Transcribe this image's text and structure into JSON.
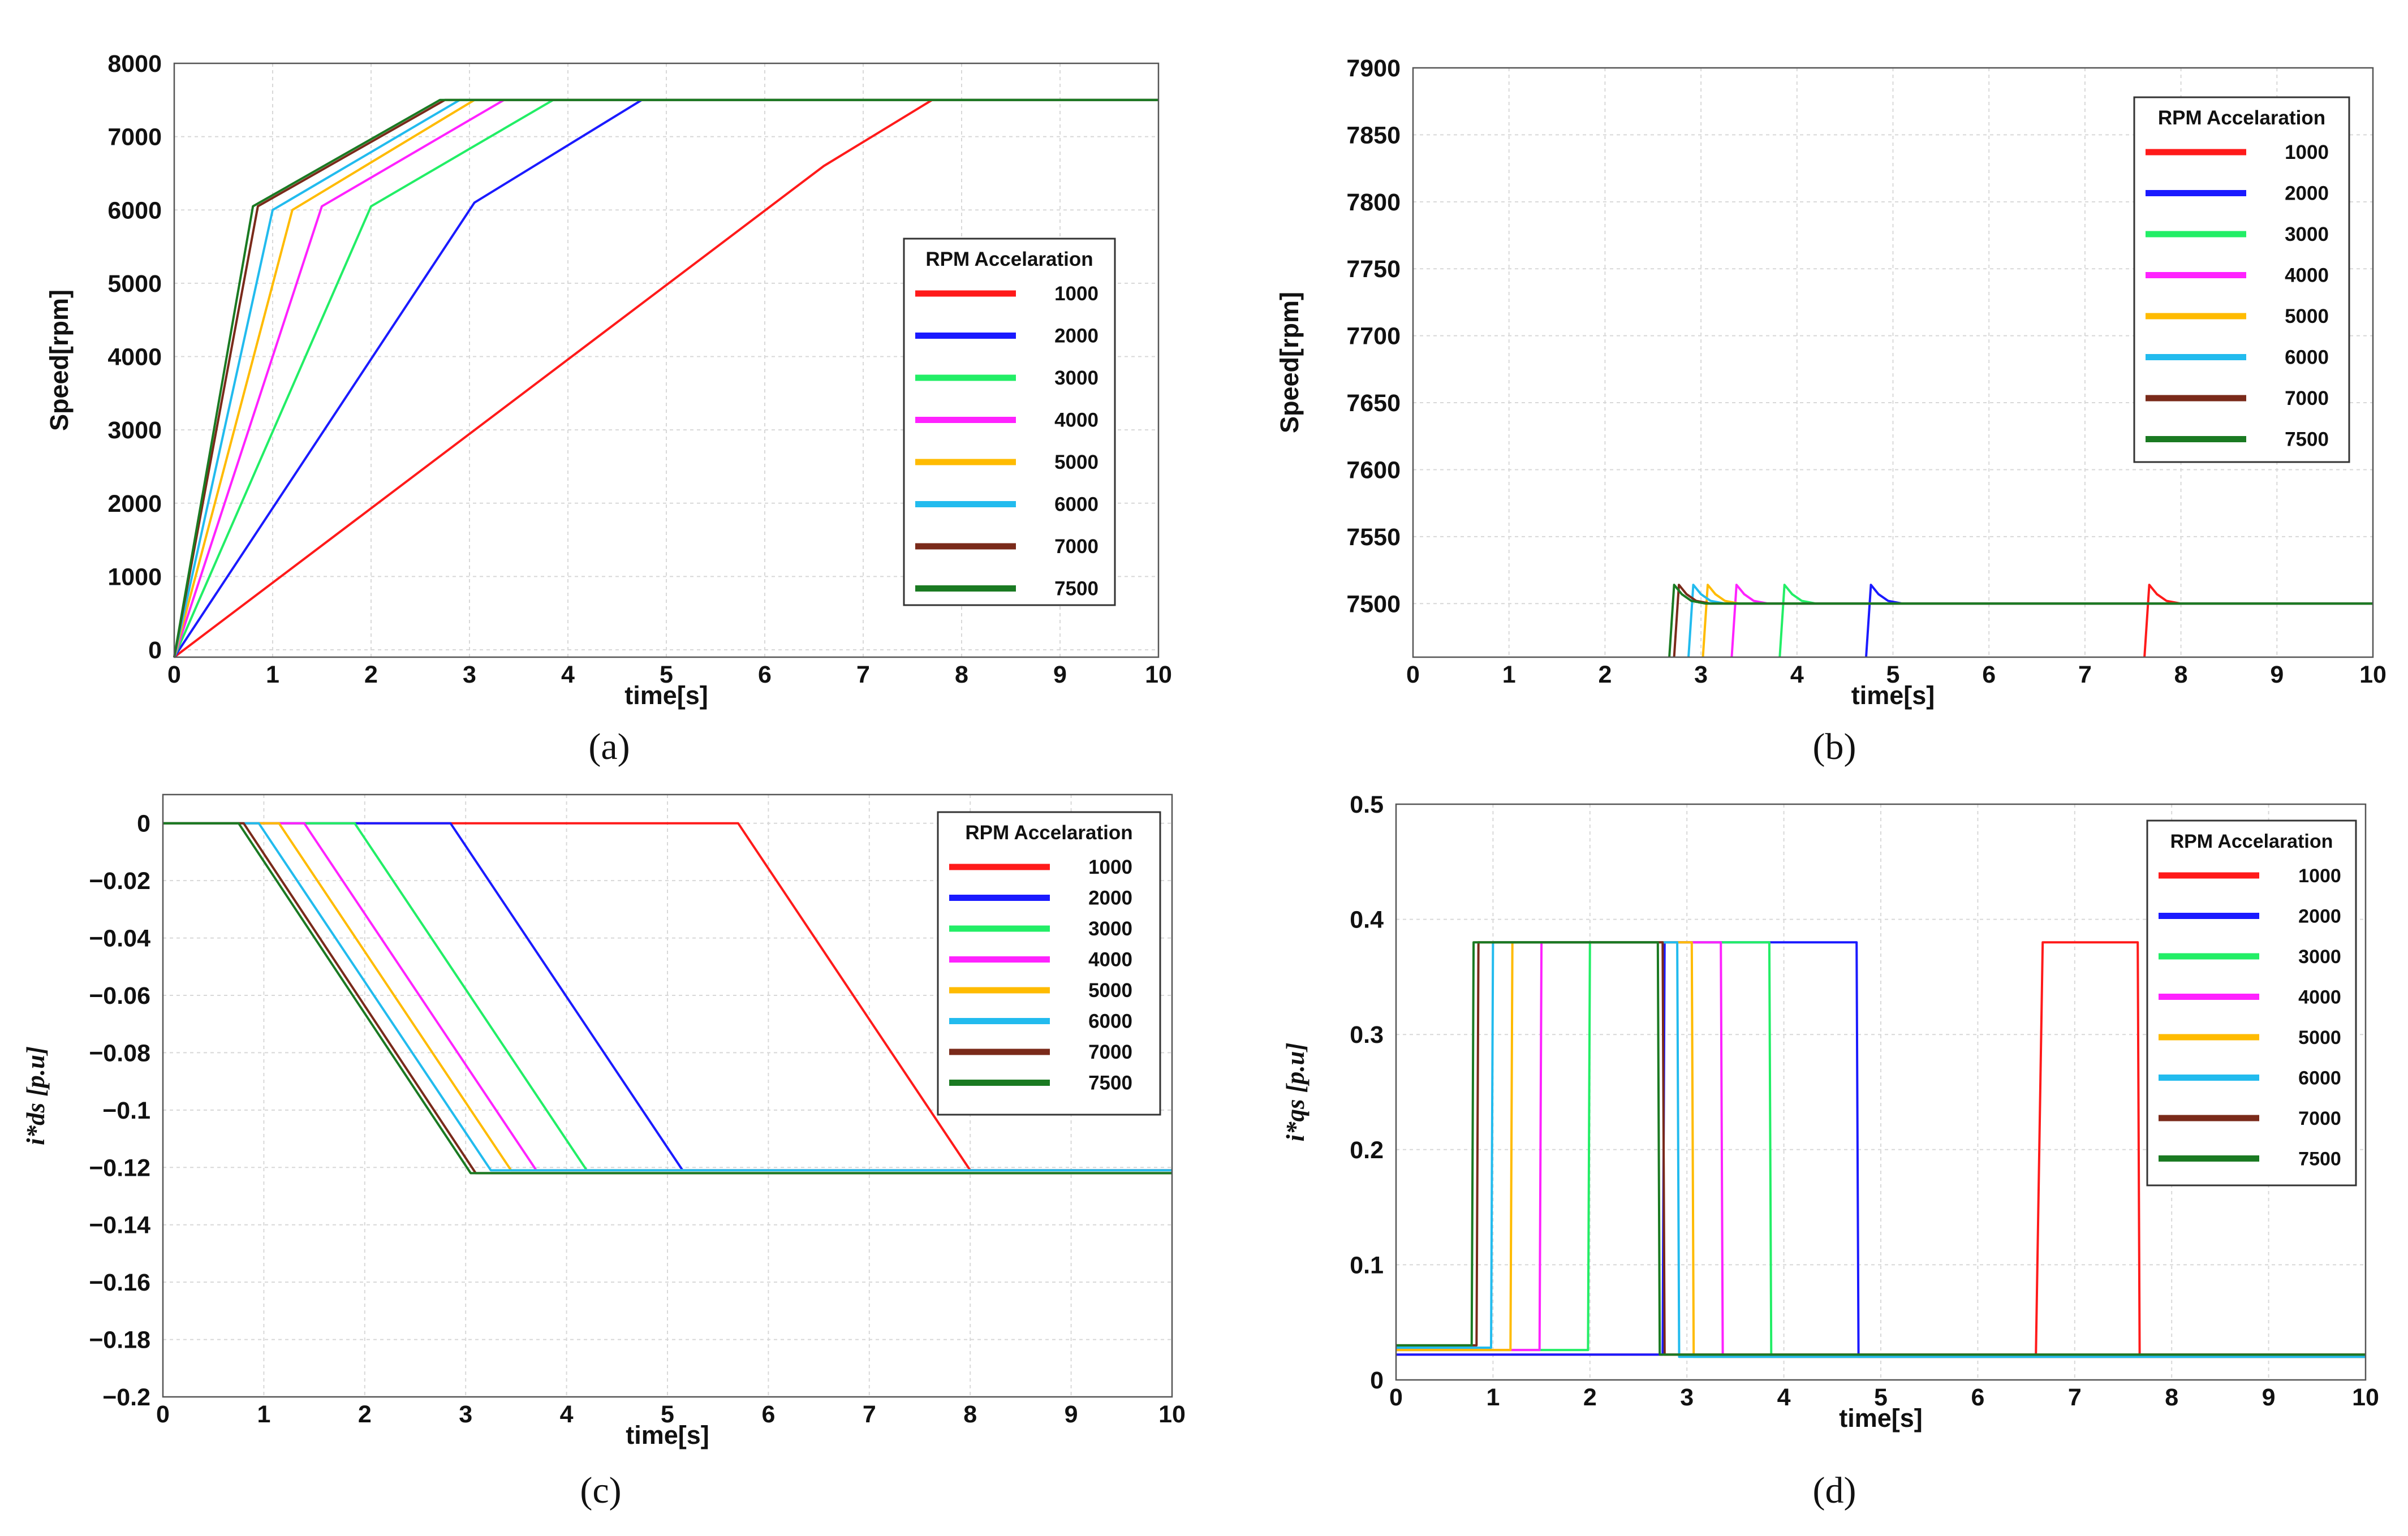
{
  "figure": {
    "panel_labels": [
      "(a)",
      "(b)",
      "(c)",
      "(d)"
    ],
    "legend_title": "RPM Accelaration",
    "series_names": [
      "1000",
      "2000",
      "3000",
      "4000",
      "5000",
      "6000",
      "7000",
      "7500"
    ],
    "series_colors": [
      "#ff1a1a",
      "#1a1aff",
      "#22ee66",
      "#ff22ff",
      "#ffbb00",
      "#22bbee",
      "#7a2a1a",
      "#1a7a22"
    ]
  },
  "chart_data": [
    {
      "type": "line",
      "panel": "(a)",
      "xlabel": "time[s]",
      "ylabel": "Speed[rpm]",
      "xlim": [
        0,
        10
      ],
      "ylim": [
        -100,
        8000
      ],
      "xticks": [
        "0",
        "1",
        "2",
        "3",
        "4",
        "5",
        "6",
        "7",
        "8",
        "9",
        "10"
      ],
      "yticks": [
        "0",
        "1000",
        "2000",
        "3000",
        "4000",
        "5000",
        "6000",
        "7000",
        "8000"
      ],
      "grid": true,
      "legend_position": "right",
      "series": [
        {
          "name": "1000",
          "x": [
            0,
            6.6,
            7.7,
            10
          ],
          "y": [
            -100,
            6600,
            7500,
            7500
          ]
        },
        {
          "name": "2000",
          "x": [
            0,
            3.05,
            4.75,
            10
          ],
          "y": [
            -100,
            6100,
            7500,
            7500
          ]
        },
        {
          "name": "3000",
          "x": [
            0,
            2.0,
            3.85,
            10
          ],
          "y": [
            -100,
            6050,
            7500,
            7500
          ]
        },
        {
          "name": "4000",
          "x": [
            0,
            1.5,
            3.35,
            10
          ],
          "y": [
            -100,
            6050,
            7500,
            7500
          ]
        },
        {
          "name": "5000",
          "x": [
            0,
            1.2,
            3.05,
            10
          ],
          "y": [
            -100,
            6000,
            7500,
            7500
          ]
        },
        {
          "name": "6000",
          "x": [
            0,
            1.0,
            2.9,
            10
          ],
          "y": [
            -100,
            6000,
            7500,
            7500
          ]
        },
        {
          "name": "7000",
          "x": [
            0,
            0.85,
            2.75,
            10
          ],
          "y": [
            -100,
            6050,
            7500,
            7500
          ]
        },
        {
          "name": "7500",
          "x": [
            0,
            0.8,
            2.7,
            10
          ],
          "y": [
            -100,
            6050,
            7500,
            7500
          ]
        }
      ]
    },
    {
      "type": "line",
      "panel": "(b)",
      "xlabel": "time[s]",
      "ylabel": "Speed[rpm]",
      "xlim": [
        0,
        10
      ],
      "ylim": [
        7460,
        7900
      ],
      "xticks": [
        "0",
        "1",
        "2",
        "3",
        "4",
        "5",
        "6",
        "7",
        "8",
        "9",
        "10"
      ],
      "yticks": [
        "7500",
        "7550",
        "7600",
        "7650",
        "7700",
        "7750",
        "7800",
        "7850",
        "7900"
      ],
      "grid": true,
      "legend_position": "top-right",
      "series": [
        {
          "name": "1000",
          "x": [
            7.62,
            7.67,
            7.75,
            7.85,
            8.0,
            10
          ],
          "y": [
            7460,
            7514,
            7507,
            7502,
            7500,
            7500
          ]
        },
        {
          "name": "2000",
          "x": [
            4.72,
            4.77,
            4.85,
            4.95,
            5.1,
            10
          ],
          "y": [
            7460,
            7514,
            7507,
            7502,
            7500,
            7500
          ]
        },
        {
          "name": "3000",
          "x": [
            3.82,
            3.87,
            3.95,
            4.05,
            4.2,
            10
          ],
          "y": [
            7460,
            7514,
            7507,
            7502,
            7500,
            7500
          ]
        },
        {
          "name": "4000",
          "x": [
            3.32,
            3.37,
            3.45,
            3.55,
            3.7,
            10
          ],
          "y": [
            7460,
            7514,
            7507,
            7502,
            7500,
            7500
          ]
        },
        {
          "name": "5000",
          "x": [
            3.02,
            3.07,
            3.15,
            3.25,
            3.4,
            10
          ],
          "y": [
            7460,
            7514,
            7507,
            7502,
            7500,
            7500
          ]
        },
        {
          "name": "6000",
          "x": [
            2.87,
            2.92,
            3.0,
            3.1,
            3.25,
            10
          ],
          "y": [
            7460,
            7514,
            7507,
            7502,
            7500,
            7500
          ]
        },
        {
          "name": "7000",
          "x": [
            2.72,
            2.77,
            2.85,
            2.95,
            3.1,
            10
          ],
          "y": [
            7460,
            7514,
            7507,
            7502,
            7500,
            7500
          ]
        },
        {
          "name": "7500",
          "x": [
            2.67,
            2.72,
            2.8,
            2.9,
            3.05,
            10
          ],
          "y": [
            7460,
            7514,
            7507,
            7502,
            7500,
            7500
          ]
        }
      ]
    },
    {
      "type": "line",
      "panel": "(c)",
      "xlabel": "time[s]",
      "ylabel": "i*ds [p.u]",
      "xlim": [
        0,
        10
      ],
      "ylim": [
        -0.2,
        0.01
      ],
      "xticks": [
        "0",
        "1",
        "2",
        "3",
        "4",
        "5",
        "6",
        "7",
        "8",
        "9",
        "10"
      ],
      "yticks": [
        "0",
        "−0.02",
        "−0.04",
        "−0.06",
        "−0.08",
        "−0.1",
        "−0.12",
        "−0.14",
        "−0.16",
        "−0.18",
        "−0.2"
      ],
      "grid": true,
      "legend_position": "top-right",
      "series": [
        {
          "name": "1000",
          "x": [
            0,
            5.7,
            8.0,
            10
          ],
          "y": [
            0,
            0,
            -0.121,
            -0.121
          ]
        },
        {
          "name": "2000",
          "x": [
            0,
            2.85,
            5.15,
            10
          ],
          "y": [
            0,
            0,
            -0.121,
            -0.121
          ]
        },
        {
          "name": "3000",
          "x": [
            0,
            1.9,
            4.2,
            10
          ],
          "y": [
            0,
            0,
            -0.121,
            -0.121
          ]
        },
        {
          "name": "4000",
          "x": [
            0,
            1.4,
            3.7,
            10
          ],
          "y": [
            0,
            0,
            -0.121,
            -0.121
          ]
        },
        {
          "name": "5000",
          "x": [
            0,
            1.15,
            3.45,
            10
          ],
          "y": [
            0,
            0,
            -0.121,
            -0.121
          ]
        },
        {
          "name": "6000",
          "x": [
            0,
            0.95,
            3.25,
            10
          ],
          "y": [
            0,
            0,
            -0.121,
            -0.121
          ]
        },
        {
          "name": "7000",
          "x": [
            0,
            0.8,
            3.1,
            10
          ],
          "y": [
            0,
            0,
            -0.122,
            -0.122
          ]
        },
        {
          "name": "7500",
          "x": [
            0,
            0.75,
            3.05,
            10
          ],
          "y": [
            0,
            0,
            -0.122,
            -0.122
          ]
        }
      ]
    },
    {
      "type": "line",
      "panel": "(d)",
      "xlabel": "time[s]",
      "ylabel": "i*qs [p.u]",
      "xlim": [
        0,
        10
      ],
      "ylim": [
        0,
        0.5
      ],
      "xticks": [
        "0",
        "1",
        "2",
        "3",
        "4",
        "5",
        "6",
        "7",
        "8",
        "9",
        "10"
      ],
      "yticks": [
        "0",
        "0.1",
        "0.2",
        "0.3",
        "0.4",
        "0.5"
      ],
      "grid": true,
      "legend_position": "top-right",
      "series": [
        {
          "name": "1000",
          "x": [
            0,
            6.6,
            6.67,
            7.65,
            7.67,
            10
          ],
          "y": [
            0.022,
            0.022,
            0.38,
            0.38,
            0.022,
            0.022
          ]
        },
        {
          "name": "2000",
          "x": [
            0,
            2.75,
            2.77,
            4.75,
            4.77,
            10
          ],
          "y": [
            0.022,
            0.022,
            0.38,
            0.38,
            0.02,
            0.02
          ]
        },
        {
          "name": "3000",
          "x": [
            0,
            1.98,
            2.0,
            3.85,
            3.87,
            10
          ],
          "y": [
            0.026,
            0.026,
            0.38,
            0.38,
            0.02,
            0.02
          ]
        },
        {
          "name": "4000",
          "x": [
            0,
            1.48,
            1.5,
            3.35,
            3.37,
            10
          ],
          "y": [
            0.026,
            0.026,
            0.38,
            0.38,
            0.02,
            0.02
          ]
        },
        {
          "name": "5000",
          "x": [
            0,
            1.18,
            1.2,
            3.05,
            3.07,
            10
          ],
          "y": [
            0.026,
            0.026,
            0.38,
            0.38,
            0.02,
            0.02
          ]
        },
        {
          "name": "6000",
          "x": [
            0,
            0.98,
            1.0,
            2.9,
            2.92,
            10
          ],
          "y": [
            0.028,
            0.028,
            0.38,
            0.38,
            0.02,
            0.02
          ]
        },
        {
          "name": "7000",
          "x": [
            0,
            0.83,
            0.85,
            2.75,
            2.77,
            10
          ],
          "y": [
            0.03,
            0.03,
            0.38,
            0.38,
            0.022,
            0.022
          ]
        },
        {
          "name": "7500",
          "x": [
            0,
            0.78,
            0.8,
            2.7,
            2.72,
            10
          ],
          "y": [
            0.03,
            0.03,
            0.38,
            0.38,
            0.022,
            0.022
          ]
        }
      ]
    }
  ]
}
